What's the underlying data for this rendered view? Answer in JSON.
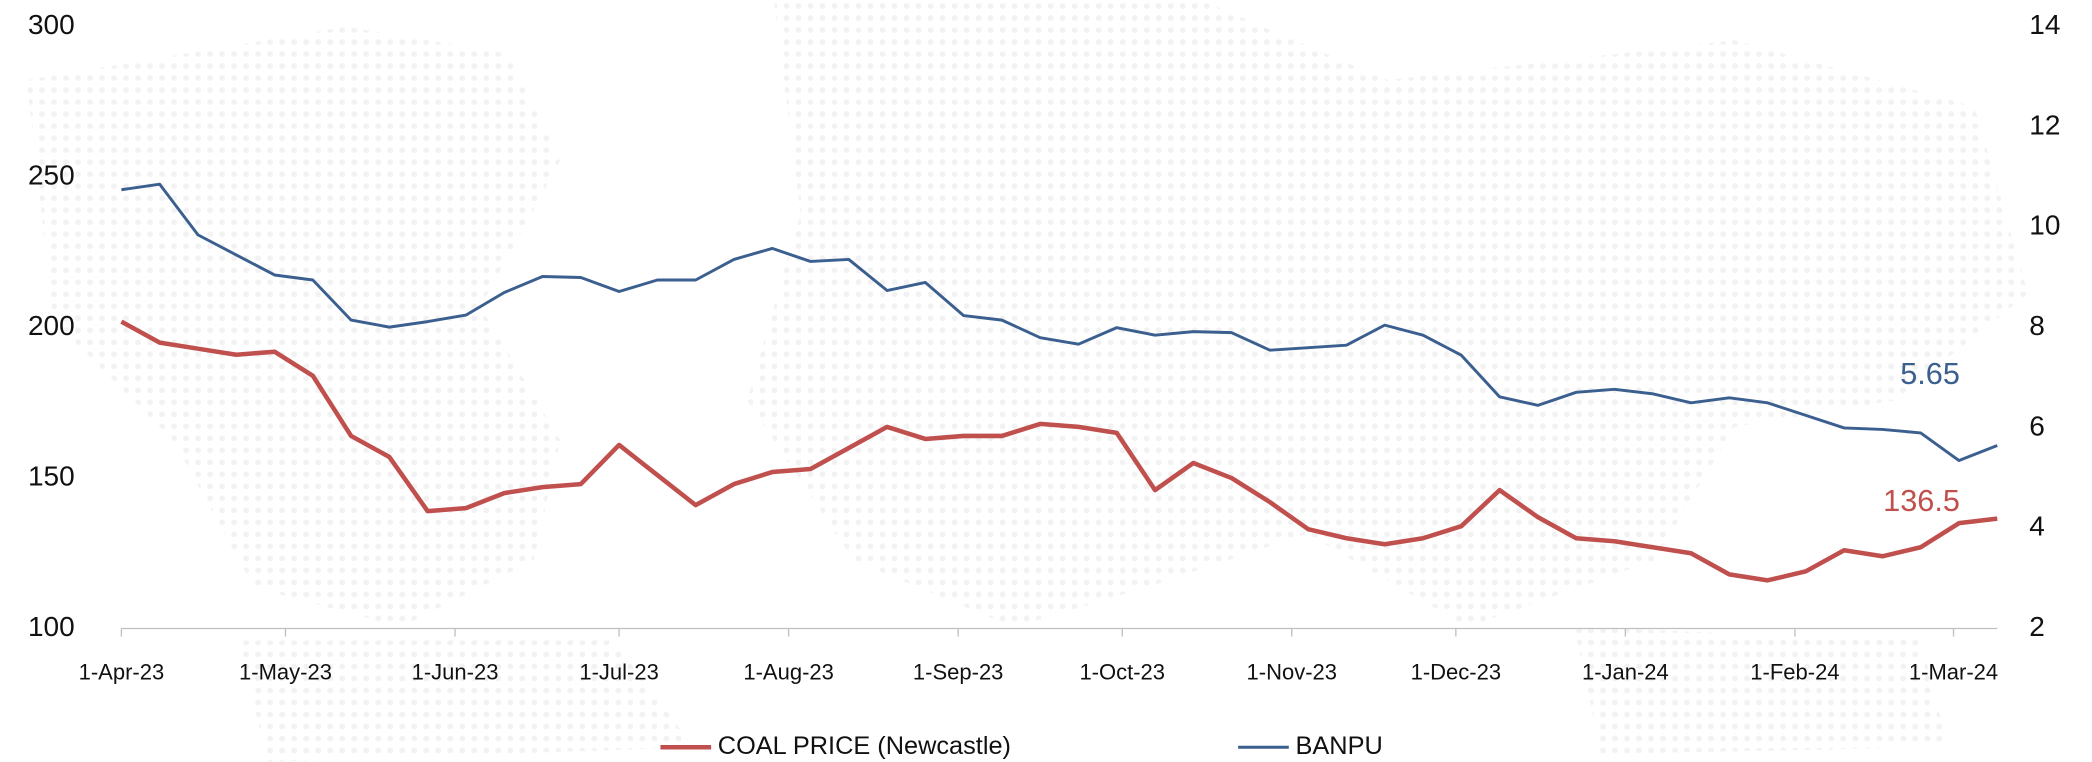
{
  "chart_data": {
    "type": "line",
    "x": [
      "2023-04-01",
      "2023-04-08",
      "2023-04-15",
      "2023-04-22",
      "2023-04-29",
      "2023-05-06",
      "2023-05-13",
      "2023-05-20",
      "2023-05-27",
      "2023-06-03",
      "2023-06-10",
      "2023-06-17",
      "2023-06-24",
      "2023-07-01",
      "2023-07-08",
      "2023-07-15",
      "2023-07-22",
      "2023-07-29",
      "2023-08-05",
      "2023-08-12",
      "2023-08-19",
      "2023-08-26",
      "2023-09-02",
      "2023-09-09",
      "2023-09-16",
      "2023-09-23",
      "2023-09-30",
      "2023-10-07",
      "2023-10-14",
      "2023-10-21",
      "2023-10-28",
      "2023-11-04",
      "2023-11-11",
      "2023-11-18",
      "2023-11-25",
      "2023-12-02",
      "2023-12-09",
      "2023-12-16",
      "2023-12-23",
      "2023-12-30",
      "2024-01-06",
      "2024-01-13",
      "2024-01-20",
      "2024-01-27",
      "2024-02-03",
      "2024-02-10",
      "2024-02-17",
      "2024-02-24",
      "2024-03-02",
      "2024-03-09"
    ],
    "series": [
      {
        "name": "COAL PRICE (Newcastle)",
        "color": "#c0504d",
        "axis": "y",
        "values": [
          202,
          195,
          193,
          191,
          192,
          184,
          164,
          157,
          139,
          140,
          145,
          147,
          148,
          161,
          151,
          141,
          148,
          152,
          153,
          160,
          167,
          163,
          164,
          164,
          168,
          167,
          165,
          146,
          155,
          150,
          142,
          133,
          130,
          128,
          130,
          134,
          146,
          137,
          130,
          129,
          127,
          125,
          118,
          116,
          119,
          126,
          124,
          127,
          135,
          136.5
        ]
      },
      {
        "name": "BANPU",
        "color": "#3b5f8f",
        "axis": "y2",
        "values": [
          10.75,
          10.86,
          9.85,
          9.45,
          9.05,
          8.95,
          8.15,
          8.01,
          8.12,
          8.25,
          8.7,
          9.02,
          9.0,
          8.72,
          8.95,
          8.95,
          9.36,
          9.58,
          9.32,
          9.36,
          8.74,
          8.9,
          8.24,
          8.15,
          7.8,
          7.67,
          8.0,
          7.85,
          7.92,
          7.9,
          7.55,
          7.6,
          7.65,
          8.05,
          7.85,
          7.45,
          6.62,
          6.45,
          6.71,
          6.77,
          6.68,
          6.5,
          6.6,
          6.5,
          6.25,
          6.0,
          5.97,
          5.9,
          5.35,
          5.65
        ]
      }
    ],
    "xlim": [
      "2023-04-01",
      "2024-03-09"
    ],
    "xticks": [
      {
        "value": "2023-04-01",
        "label": "1-Apr-23"
      },
      {
        "value": "2023-05-01",
        "label": "1-May-23"
      },
      {
        "value": "2023-06-01",
        "label": "1-Jun-23"
      },
      {
        "value": "2023-07-01",
        "label": "1-Jul-23"
      },
      {
        "value": "2023-08-01",
        "label": "1-Aug-23"
      },
      {
        "value": "2023-09-01",
        "label": "1-Sep-23"
      },
      {
        "value": "2023-10-01",
        "label": "1-Oct-23"
      },
      {
        "value": "2023-11-01",
        "label": "1-Nov-23"
      },
      {
        "value": "2023-12-01",
        "label": "1-Dec-23"
      },
      {
        "value": "2024-01-01",
        "label": "1-Jan-24"
      },
      {
        "value": "2024-02-01",
        "label": "1-Feb-24"
      },
      {
        "value": "2024-03-01",
        "label": "1-Mar-24"
      }
    ],
    "ylim": [
      100,
      300
    ],
    "yticks": [
      100,
      150,
      200,
      250,
      300
    ],
    "y2lim": [
      2,
      14
    ],
    "y2ticks": [
      2,
      4,
      6,
      8,
      10,
      12,
      14
    ],
    "legend": "bottom"
  }
}
